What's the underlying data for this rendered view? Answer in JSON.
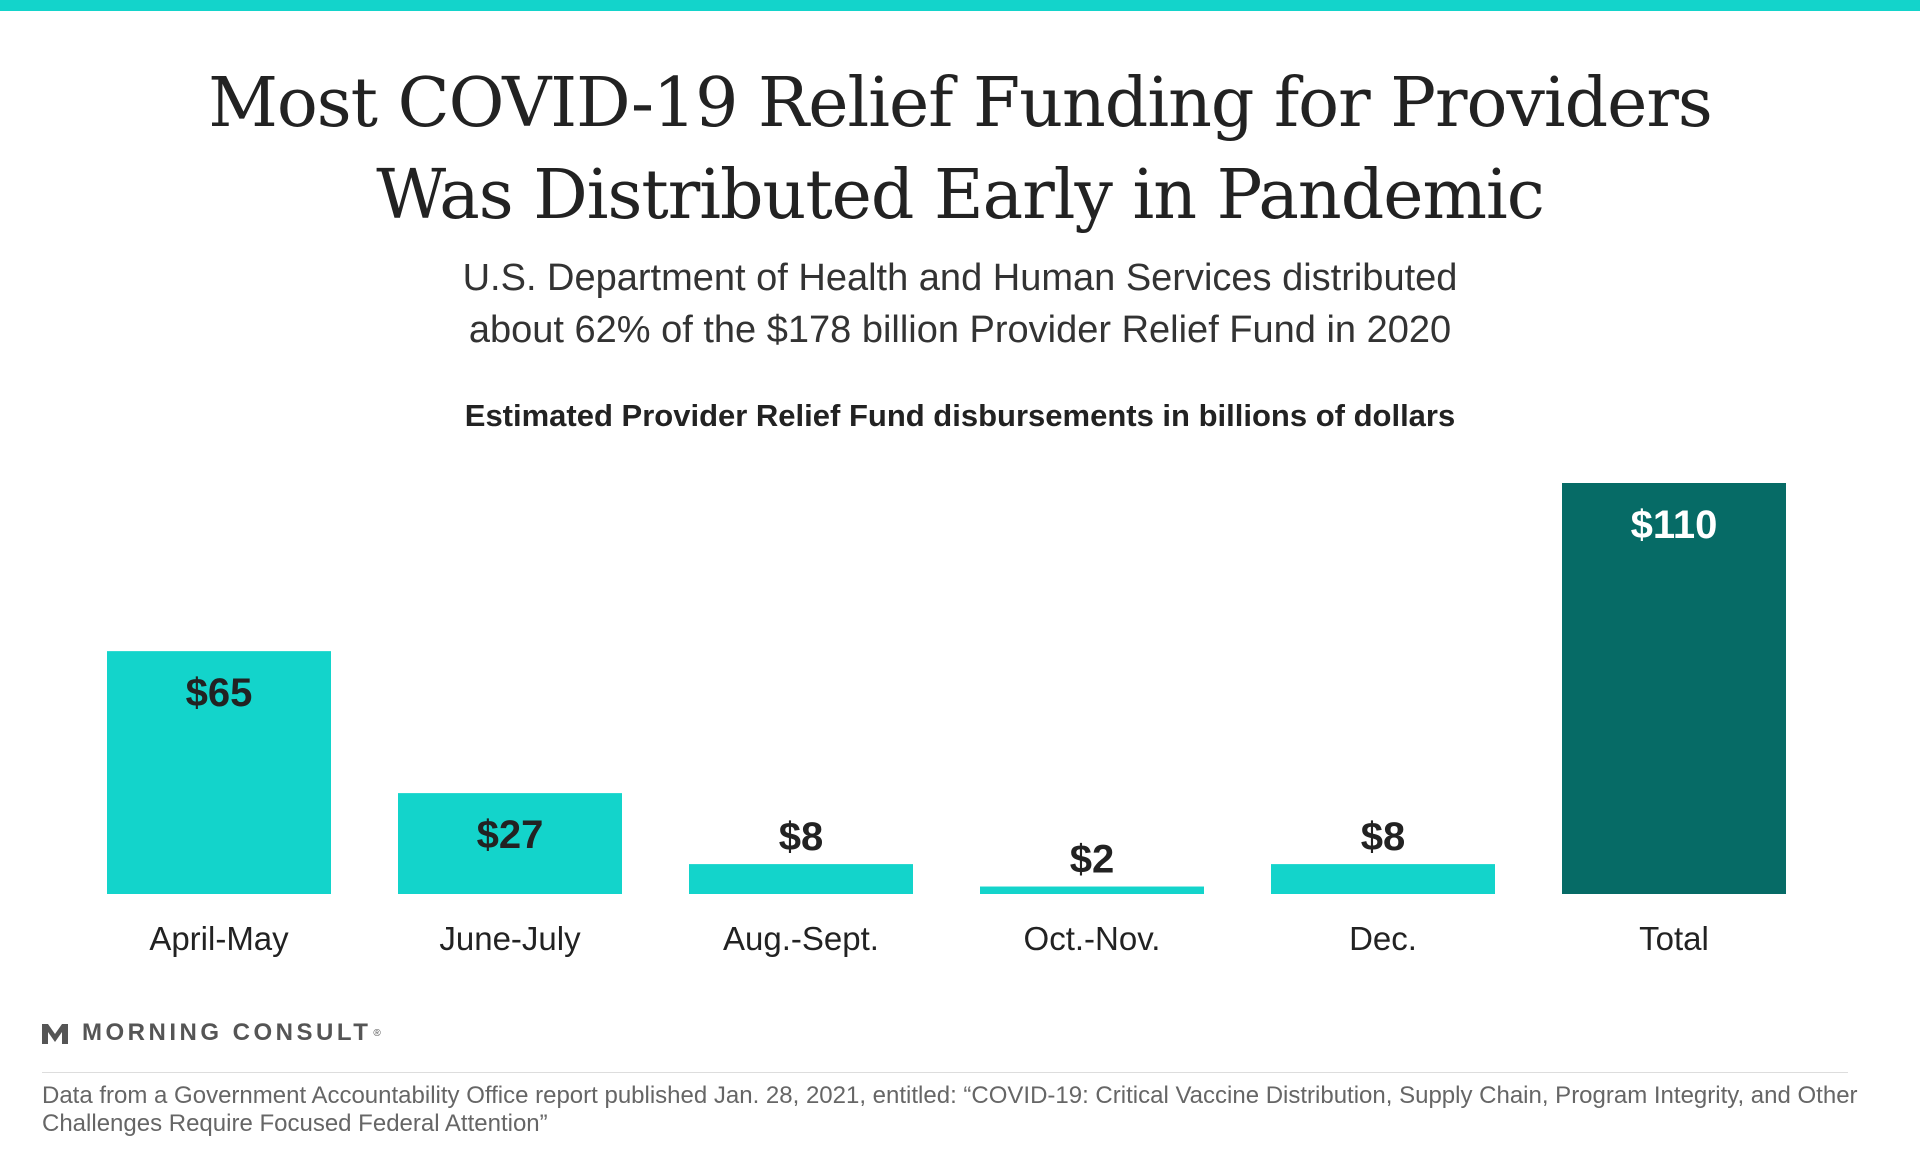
{
  "header": {
    "title_line1": "Most COVID-19 Relief Funding for Providers",
    "title_line2": "Was Distributed Early in Pandemic",
    "subtitle_line1": "U.S. Department of Health and Human Services distributed",
    "subtitle_line2": "about 62% of the $178 billion Provider Relief Fund in 2020"
  },
  "colors": {
    "accent": "#13d4cb",
    "bar": "#13d4cb",
    "total_bar": "#066b66",
    "label_dark": "#222222",
    "label_light": "#ffffff"
  },
  "chart_data": {
    "type": "bar",
    "title": "Estimated Provider Relief Fund disbursements in billions of dollars",
    "categories": [
      "April-May",
      "June-July",
      "Aug.-Sept.",
      "Oct.-Nov.",
      "Dec.",
      "Total"
    ],
    "values": [
      65,
      27,
      8,
      2,
      8,
      110
    ],
    "labels": [
      "$65",
      "$27",
      "$8",
      "$2",
      "$8",
      "$110"
    ],
    "highlight": "Total",
    "ylim": [
      0,
      110
    ],
    "grid": false,
    "legend": "none",
    "xlabel": "",
    "ylabel": ""
  },
  "footer": {
    "logo_text": "MORNING CONSULT",
    "logo_icon": "morning-consult-m-icon",
    "source": "Data from a Government Accountability Office report published Jan. 28, 2021, entitled: “COVID-19: Critical Vaccine Distribution, Supply Chain, Program Integrity, and Other Challenges Require Focused Federal Attention”"
  }
}
